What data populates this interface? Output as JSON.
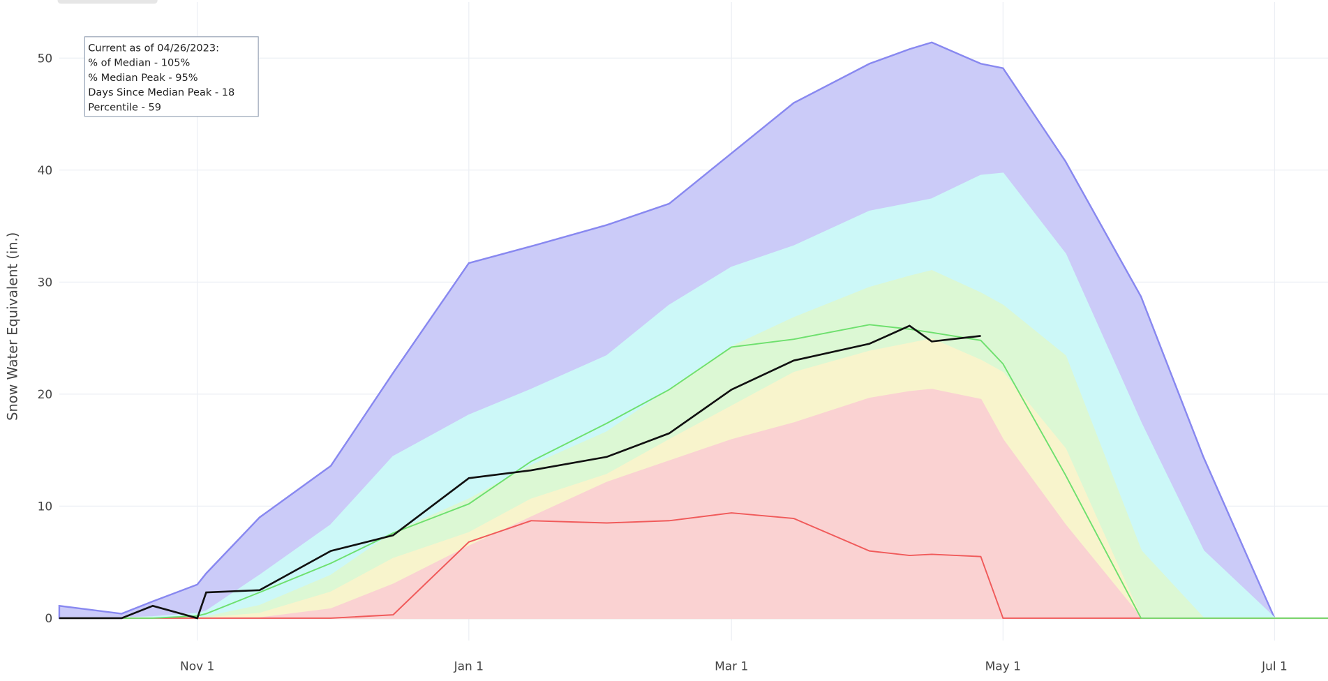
{
  "chart_data": {
    "type": "area",
    "y_label": "Snow Water Equivalent (in.)",
    "annotation": [
      "Current as of 04/26/2023:",
      "% of Median - 105%",
      "% Median Peak - 95%",
      "Days Since Median Peak - 18",
      "Percentile - 59"
    ],
    "x": [
      "Oct 1",
      "Oct 15",
      "Oct 22",
      "Nov 1",
      "Nov 3",
      "Nov 15",
      "Dec 1",
      "Dec 15",
      "Jan 1",
      "Jan 15",
      "Feb 1",
      "Feb 15",
      "Mar 1",
      "Mar 15",
      "Apr 1",
      "Apr 10",
      "Apr 15",
      "Apr 26",
      "May 1",
      "May 15",
      "Jun 1",
      "Jun 15",
      "Jul 1",
      "Jul 13"
    ],
    "xlim": [
      "Oct 1",
      "Jul 13"
    ],
    "xticks": [
      "Nov 1",
      "Jan 1",
      "Mar 1",
      "May 1",
      "Jul 1"
    ],
    "ylim": [
      -2,
      55
    ],
    "yticks": [
      0,
      10,
      20,
      30,
      40,
      50
    ],
    "grid": true,
    "series": [
      {
        "kind": "area",
        "color": "#8888f0",
        "fill": "#cbcbf8",
        "values": [
          1.1,
          0.4,
          1.5,
          3,
          4,
          9,
          13.6,
          21.9,
          31.7,
          33.2,
          35.1,
          37,
          41.5,
          46,
          49.5,
          50.8,
          51.4,
          49.5,
          49.1,
          40.8,
          28.7,
          14.4,
          0,
          0
        ]
      },
      {
        "kind": "area",
        "color": "#ccf8f8",
        "fill": "#ccf8f8",
        "values": [
          0,
          0,
          0.1,
          0.4,
          0.6,
          3.8,
          8.3,
          14.4,
          18.1,
          20.4,
          23.4,
          27.9,
          31.3,
          33.2,
          36.3,
          37,
          37.4,
          39.5,
          39.7,
          32.5,
          17.4,
          6,
          0,
          0
        ]
      },
      {
        "kind": "area",
        "color": "#dcf8d4",
        "fill": "#dcf8d4",
        "values": [
          0,
          0,
          0,
          0,
          0.1,
          1.1,
          3.8,
          7.6,
          10.6,
          13.6,
          16.6,
          20.4,
          24.2,
          26.8,
          29.5,
          30.5,
          31,
          29,
          27.9,
          23.4,
          6,
          0,
          0,
          0
        ]
      },
      {
        "kind": "area",
        "color": "#f8f4cc",
        "fill": "#f8f4cc",
        "values": [
          0,
          0,
          0,
          0,
          0,
          0.4,
          2.3,
          5.3,
          7.6,
          10.6,
          12.8,
          15.9,
          18.9,
          21.9,
          23.8,
          24.5,
          24.9,
          23,
          21.9,
          15.1,
          0,
          0,
          0,
          0
        ]
      },
      {
        "kind": "area",
        "color": "#fad2d2",
        "fill": "#fad2d2",
        "values": [
          0,
          0,
          0,
          0,
          0,
          0,
          0.8,
          3,
          6.4,
          9,
          12.1,
          14,
          15.9,
          17.4,
          19.6,
          20.2,
          20.4,
          19.5,
          15.9,
          8.3,
          0,
          0,
          0,
          0
        ]
      },
      {
        "kind": "line",
        "color": "#f05a5a",
        "values": [
          0,
          0,
          0,
          0,
          0,
          0,
          0,
          0.3,
          6.8,
          8.7,
          8.5,
          8.7,
          9.4,
          8.9,
          6,
          5.6,
          5.7,
          5.5,
          0,
          0,
          0,
          0,
          0,
          0
        ]
      },
      {
        "kind": "line",
        "color": "#6ee06e",
        "values": [
          0,
          0,
          0,
          0.2,
          0.4,
          2.3,
          4.9,
          7.6,
          10.2,
          14,
          17.4,
          20.4,
          24.2,
          24.9,
          26.2,
          25.8,
          25.5,
          24.8,
          22.7,
          12.8,
          0,
          0,
          0,
          0
        ]
      },
      {
        "kind": "line",
        "color": "#111111",
        "width": 2.2,
        "values": [
          0,
          0,
          1.1,
          0,
          2.3,
          2.5,
          6,
          7.4,
          12.5,
          13.2,
          14.4,
          16.5,
          20.4,
          23,
          24.5,
          26.1,
          24.7,
          25.2,
          null,
          null,
          null,
          null,
          null,
          null
        ]
      }
    ]
  }
}
